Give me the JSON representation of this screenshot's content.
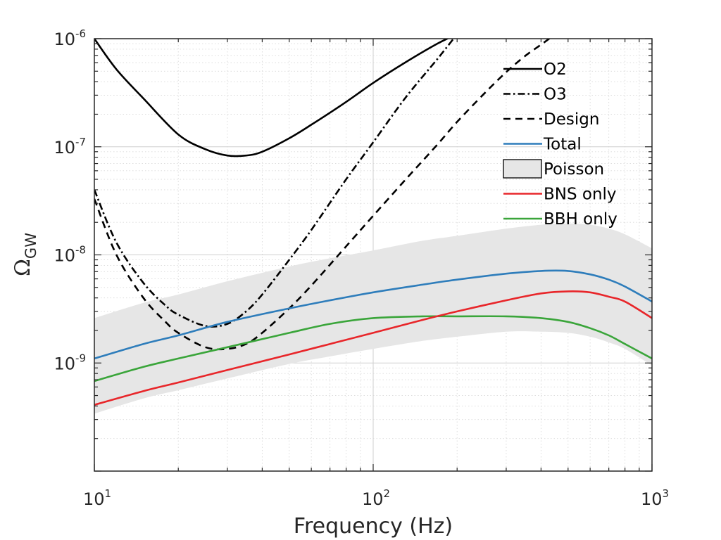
{
  "chart_data": {
    "type": "line",
    "title": "",
    "xlabel": "Frequency (Hz)",
    "ylabel_symbol": "Ω",
    "ylabel_sub": "GW",
    "xscale": "log",
    "yscale": "log",
    "xlim": [
      10,
      1000
    ],
    "ylim": [
      1e-10,
      1e-06
    ],
    "grid": "major and minor, dotted",
    "legend_position": "top-right",
    "x_ticks": [
      {
        "base": "10",
        "exp": "1"
      },
      {
        "base": "10",
        "exp": "2"
      },
      {
        "base": "10",
        "exp": "3"
      }
    ],
    "y_ticks": [
      {
        "base": "10",
        "exp": "-9"
      },
      {
        "base": "10",
        "exp": "-8"
      },
      {
        "base": "10",
        "exp": "-7"
      },
      {
        "base": "10",
        "exp": "-6"
      }
    ],
    "legend": [
      {
        "label": "O2",
        "kind": "line",
        "color": "#000000",
        "dash": "solid"
      },
      {
        "label": "O3",
        "kind": "line",
        "color": "#000000",
        "dash": "dashdot"
      },
      {
        "label": "Design",
        "kind": "line",
        "color": "#000000",
        "dash": "dashed"
      },
      {
        "label": "Total",
        "kind": "line",
        "color": "#2e7dbb",
        "dash": "solid"
      },
      {
        "label": "Poisson",
        "kind": "patch",
        "color": "#e6e6e6"
      },
      {
        "label": "BNS only",
        "kind": "line",
        "color": "#e8262a",
        "dash": "solid"
      },
      {
        "label": "BBH only",
        "kind": "line",
        "color": "#3aa53a",
        "dash": "solid"
      }
    ],
    "series": [
      {
        "name": "O2",
        "color": "#000000",
        "dash": "solid",
        "x": [
          10,
          12,
          15,
          20,
          25,
          30,
          35,
          40,
          50,
          60,
          80,
          100,
          130,
          170,
          200
        ],
        "y": [
          1e-06,
          5.2e-07,
          2.8e-07,
          1.3e-07,
          9.5e-08,
          8.3e-08,
          8.3e-08,
          9e-08,
          1.2e-07,
          1.6e-07,
          2.6e-07,
          3.9e-07,
          6e-07,
          9e-07,
          1.1e-06
        ]
      },
      {
        "name": "O3",
        "color": "#000000",
        "dash": "dashdot",
        "x": [
          10,
          12,
          15,
          18,
          20,
          25,
          30,
          35,
          40,
          50,
          60,
          80,
          100,
          130,
          170,
          200
        ],
        "y": [
          4e-08,
          1.3e-08,
          5.5e-09,
          3.4e-09,
          2.8e-09,
          2.2e-09,
          2.3e-09,
          3e-09,
          4.3e-09,
          9e-09,
          1.7e-08,
          5e-08,
          1.1e-07,
          2.8e-07,
          6.5e-07,
          1.1e-06
        ]
      },
      {
        "name": "Design",
        "color": "#000000",
        "dash": "dashed",
        "x": [
          10,
          12,
          15,
          18,
          20,
          25,
          30,
          35,
          40,
          50,
          60,
          80,
          100,
          130,
          170,
          200,
          250,
          300,
          350,
          400,
          450
        ],
        "y": [
          3.3e-08,
          1e-08,
          4e-09,
          2.4e-09,
          1.9e-09,
          1.4e-09,
          1.35e-09,
          1.5e-09,
          1.9e-09,
          3.2e-09,
          5.2e-09,
          1.2e-08,
          2.3e-08,
          4.9e-08,
          1.05e-07,
          1.7e-07,
          3.1e-07,
          4.9e-07,
          6.9e-07,
          8.8e-07,
          1.1e-06
        ]
      },
      {
        "name": "Total",
        "color": "#2e7dbb",
        "dash": "solid",
        "x": [
          10,
          15,
          20,
          30,
          50,
          70,
          100,
          150,
          200,
          300,
          400,
          500,
          600,
          700,
          800,
          1000
        ],
        "y": [
          1.1e-09,
          1.5e-09,
          1.8e-09,
          2.4e-09,
          3.2e-09,
          3.8e-09,
          4.5e-09,
          5.3e-09,
          5.9e-09,
          6.7e-09,
          7.1e-09,
          7.1e-09,
          6.6e-09,
          5.9e-09,
          5.1e-09,
          3.7e-09
        ]
      },
      {
        "name": "BNS only",
        "color": "#e8262a",
        "dash": "solid",
        "x": [
          10,
          15,
          20,
          30,
          50,
          70,
          100,
          150,
          200,
          300,
          400,
          500,
          600,
          700,
          800,
          1000
        ],
        "y": [
          4.1e-10,
          5.5e-10,
          6.6e-10,
          8.6e-10,
          1.2e-09,
          1.5e-09,
          1.9e-09,
          2.5e-09,
          3e-09,
          3.8e-09,
          4.4e-09,
          4.6e-09,
          4.5e-09,
          4.1e-09,
          3.7e-09,
          2.6e-09
        ]
      },
      {
        "name": "BBH only",
        "color": "#3aa53a",
        "dash": "solid",
        "x": [
          10,
          15,
          20,
          30,
          50,
          70,
          100,
          150,
          200,
          300,
          400,
          500,
          600,
          700,
          800,
          1000
        ],
        "y": [
          6.8e-10,
          9.2e-10,
          1.1e-09,
          1.4e-09,
          1.9e-09,
          2.3e-09,
          2.6e-09,
          2.7e-09,
          2.7e-09,
          2.7e-09,
          2.6e-09,
          2.4e-09,
          2.1e-09,
          1.8e-09,
          1.5e-09,
          1.1e-09
        ]
      }
    ],
    "band": {
      "name": "Poisson",
      "color": "#e6e6e6",
      "x": [
        10,
        15,
        20,
        30,
        50,
        70,
        100,
        150,
        200,
        300,
        400,
        500,
        600,
        700,
        800,
        1000
      ],
      "upper": [
        2.6e-09,
        3.6e-09,
        4.3e-09,
        5.7e-09,
        7.8e-09,
        9.3e-09,
        1.1e-08,
        1.35e-08,
        1.5e-08,
        1.75e-08,
        1.9e-08,
        1.95e-08,
        1.9e-08,
        1.75e-08,
        1.55e-08,
        1.15e-08
      ],
      "lower": [
        3.4e-10,
        4.7e-10,
        5.6e-10,
        7.2e-10,
        9.8e-10,
        1.15e-09,
        1.35e-09,
        1.6e-09,
        1.75e-09,
        1.95e-09,
        1.95e-09,
        1.9e-09,
        1.75e-09,
        1.55e-09,
        1.35e-09,
        9.5e-10
      ]
    }
  }
}
